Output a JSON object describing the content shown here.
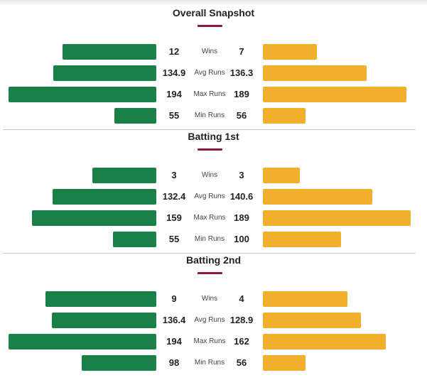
{
  "colors": {
    "left": "#198047",
    "right": "#f2af2c",
    "accent": "#8c1c3a"
  },
  "chart_data": {
    "type": "bar",
    "orientation": "diverging-horizontal",
    "sections": [
      {
        "title": "Overall Snapshot",
        "rows": [
          {
            "label": "Wins",
            "left": "12",
            "right": "7",
            "left_fill": 0.635,
            "right_fill": 0.365
          },
          {
            "label": "Avg Runs",
            "left": "134.9",
            "right": "136.3",
            "left_fill": 0.697,
            "right_fill": 0.702
          },
          {
            "label": "Max Runs",
            "left": "194",
            "right": "189",
            "left_fill": 1.0,
            "right_fill": 0.971
          },
          {
            "label": "Min Runs",
            "left": "55",
            "right": "56",
            "left_fill": 0.284,
            "right_fill": 0.288
          }
        ]
      },
      {
        "title": "Batting 1st",
        "rows": [
          {
            "label": "Wins",
            "left": "3",
            "right": "3",
            "left_fill": 0.433,
            "right_fill": 0.25
          },
          {
            "label": "Avg Runs",
            "left": "132.4",
            "right": "140.6",
            "left_fill": 0.702,
            "right_fill": 0.74
          },
          {
            "label": "Max Runs",
            "left": "159",
            "right": "189",
            "left_fill": 0.841,
            "right_fill": 1.0
          },
          {
            "label": "Min Runs",
            "left": "55",
            "right": "100",
            "left_fill": 0.293,
            "right_fill": 0.529
          }
        ]
      },
      {
        "title": "Batting 2nd",
        "rows": [
          {
            "label": "Wins",
            "left": "9",
            "right": "4",
            "left_fill": 0.75,
            "right_fill": 0.572
          },
          {
            "label": "Avg Runs",
            "left": "136.4",
            "right": "128.9",
            "left_fill": 0.707,
            "right_fill": 0.663
          },
          {
            "label": "Max Runs",
            "left": "194",
            "right": "162",
            "left_fill": 1.0,
            "right_fill": 0.832
          },
          {
            "label": "Min Runs",
            "left": "98",
            "right": "56",
            "left_fill": 0.505,
            "right_fill": 0.288
          }
        ]
      }
    ]
  }
}
